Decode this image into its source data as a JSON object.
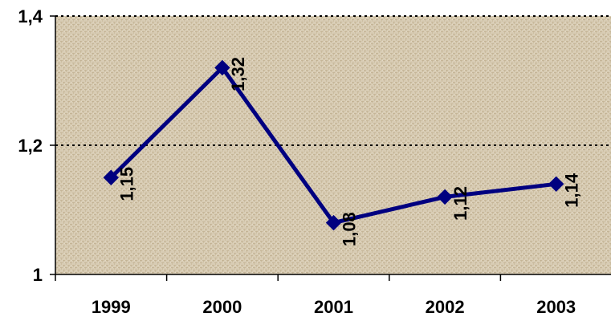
{
  "chart_data": {
    "type": "line",
    "title": "",
    "xlabel": "",
    "ylabel": "",
    "categories": [
      "1999",
      "2000",
      "2001",
      "2002",
      "2003"
    ],
    "series": [
      {
        "values": [
          1.15,
          1.32,
          1.08,
          1.12,
          1.14
        ],
        "labels": [
          "1,15",
          "1,32",
          "1,08",
          "1,12",
          "1,14"
        ],
        "color": "#000080",
        "marker": "diamond"
      }
    ],
    "ylim": [
      1,
      1.4
    ],
    "yticks": [
      1,
      1.2,
      1.4
    ],
    "ytick_labels": [
      "1",
      "1,2",
      "1,4"
    ],
    "grid": "horizontal-dotted",
    "legend": "none",
    "plot_background": "#d8ccb4",
    "texture_color": "#b4a27f"
  }
}
